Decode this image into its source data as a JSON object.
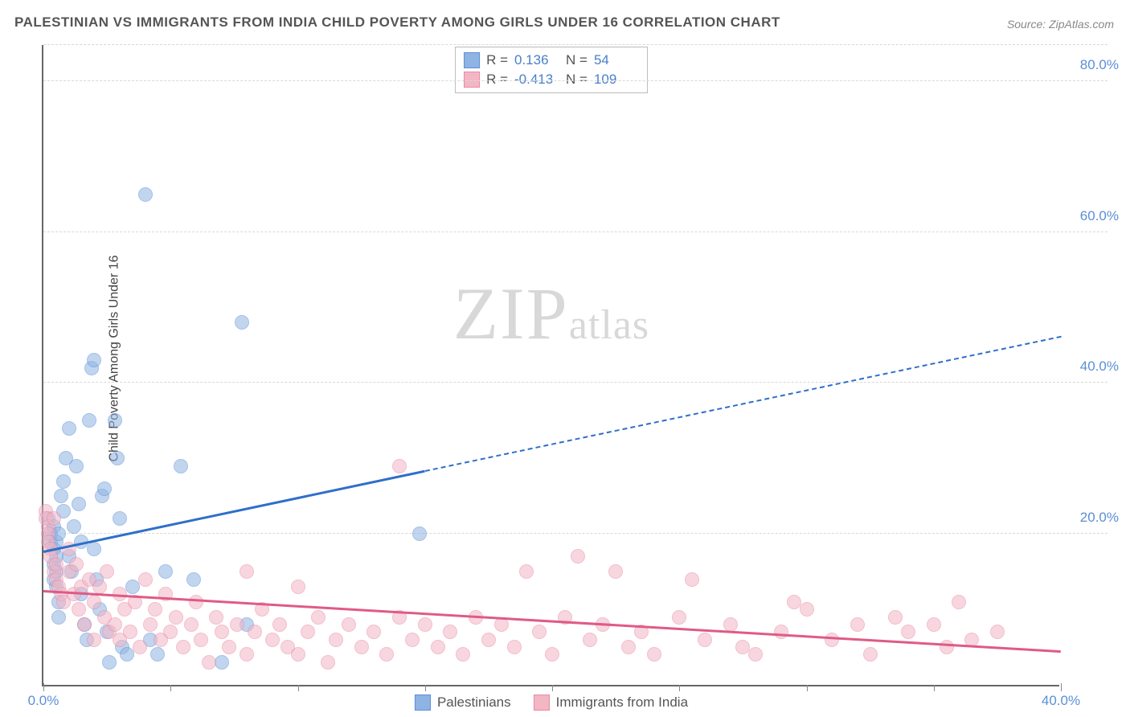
{
  "title": "PALESTINIAN VS IMMIGRANTS FROM INDIA CHILD POVERTY AMONG GIRLS UNDER 16 CORRELATION CHART",
  "source": "Source: ZipAtlas.com",
  "ylabel": "Child Poverty Among Girls Under 16",
  "watermark": {
    "big": "ZIP",
    "small": "atlas"
  },
  "chart": {
    "type": "scatter",
    "xlim": [
      0,
      40
    ],
    "ylim": [
      0,
      85
    ],
    "ygrid": [
      20,
      40,
      60,
      80
    ],
    "yticks": [
      {
        "v": 20,
        "label": "20.0%"
      },
      {
        "v": 40,
        "label": "40.0%"
      },
      {
        "v": 60,
        "label": "60.0%"
      },
      {
        "v": 80,
        "label": "80.0%"
      }
    ],
    "xticks_major": [
      {
        "v": 0,
        "label": "0.0%"
      },
      {
        "v": 40,
        "label": "40.0%"
      }
    ],
    "xticks_minor": [
      5,
      10,
      15,
      20,
      25,
      30,
      35
    ],
    "background": "#ffffff",
    "grid_color": "#d8d8d8",
    "axis_color": "#666666",
    "tick_label_color": "#5b8fd6",
    "marker_radius": 9,
    "marker_opacity": 0.55,
    "series": [
      {
        "key": "palestinians",
        "label": "Palestinians",
        "fill": "#8fb4e3",
        "stroke": "#5b8fd6",
        "R": "0.136",
        "N": "54",
        "trend": {
          "x0": 0,
          "y0": 17.5,
          "x1": 40,
          "y1": 46,
          "solid_until_x": 15,
          "color": "#2f6fc9"
        },
        "points": [
          [
            0.2,
            22
          ],
          [
            0.3,
            20
          ],
          [
            0.3,
            19
          ],
          [
            0.4,
            18
          ],
          [
            0.4,
            21
          ],
          [
            0.4,
            16
          ],
          [
            0.4,
            14
          ],
          [
            0.5,
            17
          ],
          [
            0.5,
            15
          ],
          [
            0.5,
            19
          ],
          [
            0.5,
            13
          ],
          [
            0.6,
            20
          ],
          [
            0.6,
            11
          ],
          [
            0.6,
            9
          ],
          [
            0.7,
            25
          ],
          [
            0.8,
            23
          ],
          [
            0.8,
            27
          ],
          [
            0.9,
            30
          ],
          [
            1.0,
            34
          ],
          [
            1.0,
            17
          ],
          [
            1.1,
            15
          ],
          [
            1.2,
            21
          ],
          [
            1.3,
            29
          ],
          [
            1.4,
            24
          ],
          [
            1.5,
            19
          ],
          [
            1.5,
            12
          ],
          [
            1.6,
            8
          ],
          [
            1.7,
            6
          ],
          [
            1.8,
            35
          ],
          [
            1.9,
            42
          ],
          [
            2.0,
            43
          ],
          [
            2.0,
            18
          ],
          [
            2.1,
            14
          ],
          [
            2.2,
            10
          ],
          [
            2.3,
            25
          ],
          [
            2.4,
            26
          ],
          [
            2.5,
            7
          ],
          [
            2.6,
            3
          ],
          [
            2.8,
            35
          ],
          [
            2.9,
            30
          ],
          [
            3.0,
            22
          ],
          [
            3.1,
            5
          ],
          [
            3.3,
            4
          ],
          [
            3.5,
            13
          ],
          [
            4.0,
            65
          ],
          [
            4.2,
            6
          ],
          [
            4.5,
            4
          ],
          [
            4.8,
            15
          ],
          [
            5.4,
            29
          ],
          [
            5.9,
            14
          ],
          [
            7.0,
            3
          ],
          [
            7.8,
            48
          ],
          [
            8.0,
            8
          ],
          [
            14.8,
            20
          ]
        ]
      },
      {
        "key": "india",
        "label": "Immigrants from India",
        "fill": "#f3b6c5",
        "stroke": "#e88aa3",
        "R": "-0.413",
        "N": "109",
        "trend": {
          "x0": 0,
          "y0": 12.2,
          "x1": 40,
          "y1": 4.2,
          "solid_until_x": 40,
          "color": "#e05a86"
        },
        "points": [
          [
            0.1,
            23
          ],
          [
            0.1,
            22
          ],
          [
            0.2,
            21
          ],
          [
            0.2,
            20
          ],
          [
            0.2,
            19
          ],
          [
            0.3,
            18
          ],
          [
            0.3,
            17
          ],
          [
            0.4,
            22
          ],
          [
            0.4,
            15
          ],
          [
            0.5,
            14
          ],
          [
            0.5,
            16
          ],
          [
            0.6,
            13
          ],
          [
            0.7,
            12
          ],
          [
            0.8,
            11
          ],
          [
            1.0,
            18
          ],
          [
            1.0,
            15
          ],
          [
            1.2,
            12
          ],
          [
            1.3,
            16
          ],
          [
            1.4,
            10
          ],
          [
            1.5,
            13
          ],
          [
            1.6,
            8
          ],
          [
            1.8,
            14
          ],
          [
            2.0,
            11
          ],
          [
            2.0,
            6
          ],
          [
            2.2,
            13
          ],
          [
            2.4,
            9
          ],
          [
            2.5,
            15
          ],
          [
            2.6,
            7
          ],
          [
            2.8,
            8
          ],
          [
            3.0,
            12
          ],
          [
            3.0,
            6
          ],
          [
            3.2,
            10
          ],
          [
            3.4,
            7
          ],
          [
            3.6,
            11
          ],
          [
            3.8,
            5
          ],
          [
            4.0,
            14
          ],
          [
            4.2,
            8
          ],
          [
            4.4,
            10
          ],
          [
            4.6,
            6
          ],
          [
            4.8,
            12
          ],
          [
            5.0,
            7
          ],
          [
            5.2,
            9
          ],
          [
            5.5,
            5
          ],
          [
            5.8,
            8
          ],
          [
            6.0,
            11
          ],
          [
            6.2,
            6
          ],
          [
            6.5,
            3
          ],
          [
            6.8,
            9
          ],
          [
            7.0,
            7
          ],
          [
            7.3,
            5
          ],
          [
            7.6,
            8
          ],
          [
            8.0,
            15
          ],
          [
            8.0,
            4
          ],
          [
            8.3,
            7
          ],
          [
            8.6,
            10
          ],
          [
            9.0,
            6
          ],
          [
            9.3,
            8
          ],
          [
            9.6,
            5
          ],
          [
            10.0,
            13
          ],
          [
            10.0,
            4
          ],
          [
            10.4,
            7
          ],
          [
            10.8,
            9
          ],
          [
            11.2,
            3
          ],
          [
            11.5,
            6
          ],
          [
            12.0,
            8
          ],
          [
            12.5,
            5
          ],
          [
            13.0,
            7
          ],
          [
            13.5,
            4
          ],
          [
            14.0,
            29
          ],
          [
            14.0,
            9
          ],
          [
            14.5,
            6
          ],
          [
            15.0,
            8
          ],
          [
            15.5,
            5
          ],
          [
            16.0,
            7
          ],
          [
            16.5,
            4
          ],
          [
            17.0,
            9
          ],
          [
            17.5,
            6
          ],
          [
            18.0,
            8
          ],
          [
            18.5,
            5
          ],
          [
            19.0,
            15
          ],
          [
            19.5,
            7
          ],
          [
            20.0,
            4
          ],
          [
            20.5,
            9
          ],
          [
            21.0,
            17
          ],
          [
            21.5,
            6
          ],
          [
            22.0,
            8
          ],
          [
            22.5,
            15
          ],
          [
            23.0,
            5
          ],
          [
            23.5,
            7
          ],
          [
            24.0,
            4
          ],
          [
            25.0,
            9
          ],
          [
            25.5,
            14
          ],
          [
            26.0,
            6
          ],
          [
            27.0,
            8
          ],
          [
            27.5,
            5
          ],
          [
            28.0,
            4
          ],
          [
            29.0,
            7
          ],
          [
            29.5,
            11
          ],
          [
            30.0,
            10
          ],
          [
            31.0,
            6
          ],
          [
            32.0,
            8
          ],
          [
            32.5,
            4
          ],
          [
            33.5,
            9
          ],
          [
            34.0,
            7
          ],
          [
            35.0,
            8
          ],
          [
            35.5,
            5
          ],
          [
            36.0,
            11
          ],
          [
            36.5,
            6
          ],
          [
            37.5,
            7
          ]
        ]
      }
    ]
  },
  "legend_india": "Immigrants from India",
  "legend_pal": "Palestinians"
}
